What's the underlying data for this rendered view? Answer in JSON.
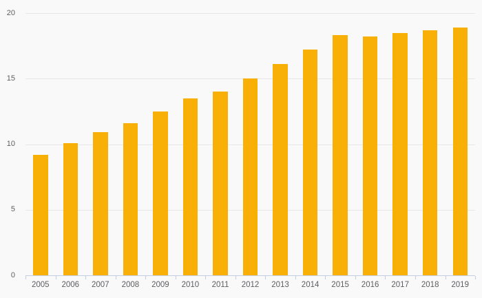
{
  "chart_data": {
    "type": "bar",
    "title": "",
    "xlabel": "",
    "ylabel": "",
    "categories": [
      "2005",
      "2006",
      "2007",
      "2008",
      "2009",
      "2010",
      "2011",
      "2012",
      "2013",
      "2014",
      "2015",
      "2016",
      "2017",
      "2018",
      "2019"
    ],
    "values": [
      9.2,
      10.1,
      10.9,
      11.6,
      12.5,
      13.5,
      14.0,
      15.0,
      16.1,
      17.2,
      18.3,
      18.2,
      18.5,
      18.7,
      18.9
    ],
    "ylim": [
      0,
      20
    ],
    "yticks": [
      0,
      5,
      10,
      15,
      20
    ],
    "grid": true,
    "legend": false,
    "colors": {
      "bar": "#f9b006",
      "background": "#f9f9f9",
      "gridline": "#e7e7e7",
      "axis_line": "#c3cfe0",
      "tick": "#c3cfe0",
      "label_text": "#5c5d60"
    }
  }
}
